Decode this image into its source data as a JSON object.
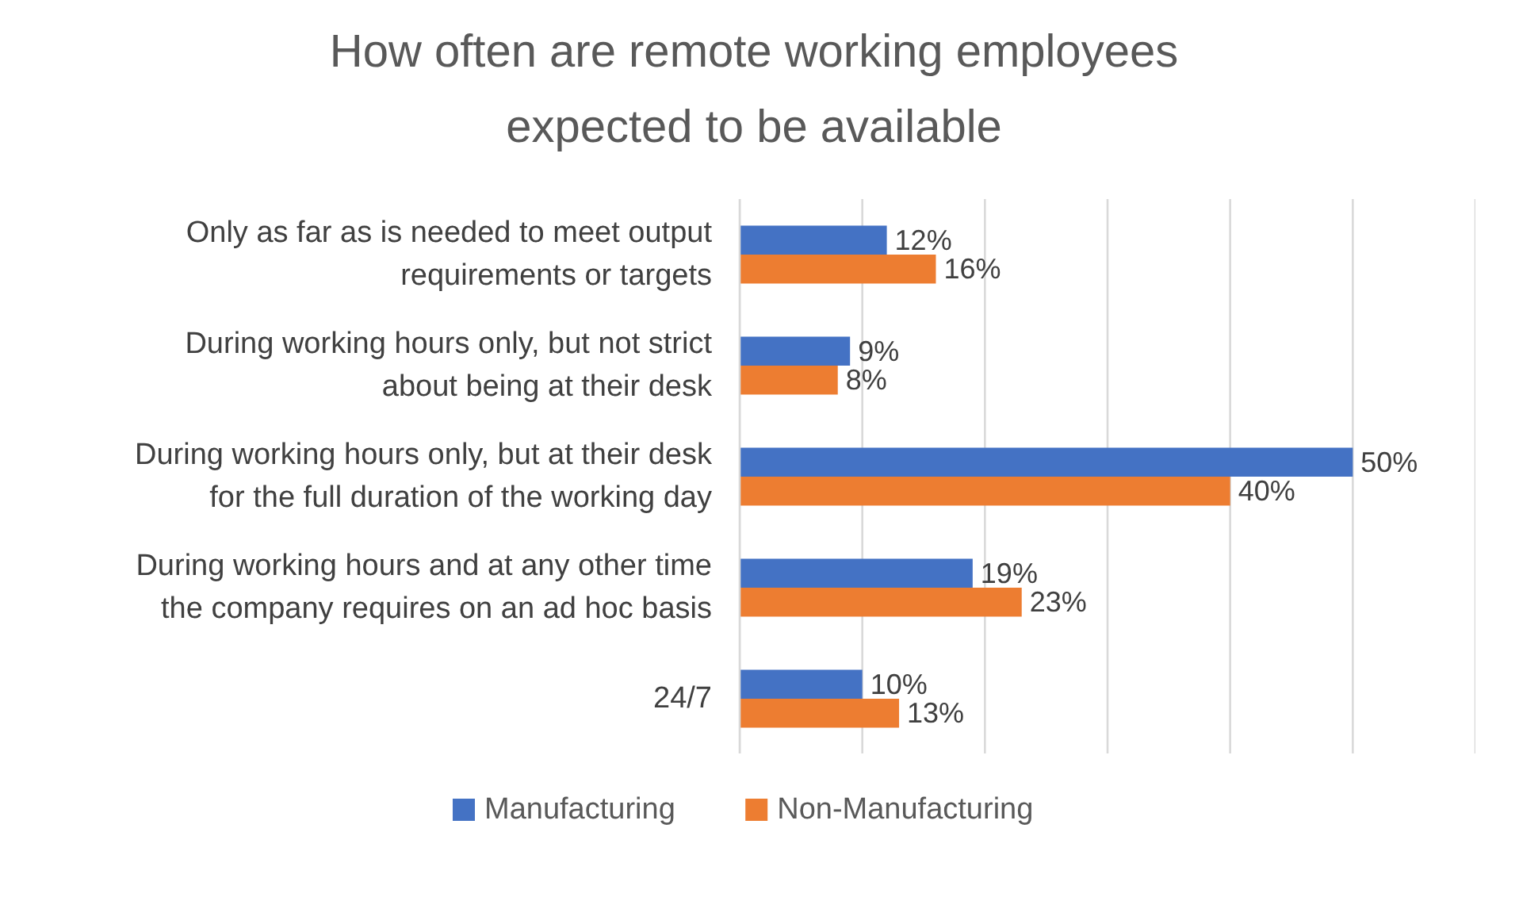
{
  "chart_data": {
    "type": "bar",
    "orientation": "horizontal",
    "title": "How often are remote working employees expected to be available",
    "categories": [
      "Only as far as is needed to meet output requirements or targets",
      "During working hours only, but not strict about being at their desk",
      "During working hours only, but at their desk for the full duration of the working day",
      "During working hours and at any other time the company requires on an ad hoc basis",
      "24/7"
    ],
    "series": [
      {
        "name": "Manufacturing",
        "color": "#4472c4",
        "values": [
          12,
          9,
          50,
          19,
          10
        ],
        "value_labels": [
          "12%",
          "9%",
          "50%",
          "19%",
          "10%"
        ]
      },
      {
        "name": "Non-Manufacturing",
        "color": "#ed7d31",
        "values": [
          16,
          8,
          40,
          23,
          13
        ],
        "value_labels": [
          "16%",
          "8%",
          "40%",
          "23%",
          "13%"
        ]
      }
    ],
    "xlim": [
      0,
      60
    ],
    "xticks": [
      {
        "value": 0,
        "label": null
      },
      {
        "value": 10,
        "label": null
      },
      {
        "value": 20,
        "label": null
      },
      {
        "value": 30,
        "label": null
      },
      {
        "value": 40,
        "label": null
      },
      {
        "value": 50,
        "label": null
      },
      {
        "value": 60,
        "label": null
      }
    ],
    "grid": "x",
    "legend": "bottom",
    "tick_labels": "y"
  }
}
